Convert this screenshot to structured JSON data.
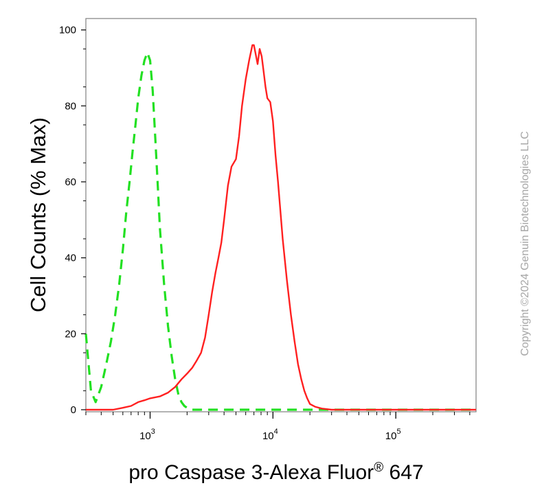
{
  "chart_data": {
    "type": "line",
    "xlabel_main": "pro Caspase 3-Alexa Fluor",
    "xlabel_reg": "®",
    "xlabel_tail": " 647",
    "ylabel": "Cell Counts (% Max)",
    "x_scale": "log",
    "xlim": [
      300,
      450000
    ],
    "ylim": [
      0,
      103
    ],
    "y_ticks": [
      0,
      20,
      40,
      60,
      80,
      100
    ],
    "x_major_ticks": [
      {
        "value": 1000,
        "base": "10",
        "exp": "3"
      },
      {
        "value": 10000,
        "base": "10",
        "exp": "4"
      },
      {
        "value": 100000,
        "base": "10",
        "exp": "5"
      }
    ],
    "grid": false,
    "watermark": "Copyright ©2024 Genuin Biotechnologies LLC",
    "series": [
      {
        "style": "dashed",
        "color": "#22e022",
        "x": [
          300,
          330,
          360,
          400,
          440,
          480,
          520,
          560,
          600,
          640,
          680,
          720,
          760,
          800,
          850,
          900,
          950,
          1000,
          1050,
          1100,
          1150,
          1200,
          1300,
          1400,
          1500,
          1600,
          1700,
          1800,
          1900,
          2000,
          2100,
          2200,
          3000,
          10000,
          50000,
          450000
        ],
        "y": [
          20,
          5,
          2,
          6,
          12,
          18,
          25,
          33,
          42,
          52,
          60,
          68,
          75,
          82,
          88,
          92,
          94,
          92,
          84,
          72,
          60,
          48,
          33,
          22,
          14,
          8,
          4,
          2,
          1,
          0.5,
          0.3,
          0,
          0,
          0,
          0,
          0
        ]
      },
      {
        "style": "solid",
        "color": "#ff2020",
        "x": [
          300,
          500,
          600,
          700,
          800,
          900,
          1000,
          1200,
          1400,
          1600,
          1800,
          2000,
          2200,
          2400,
          2600,
          2800,
          3000,
          3200,
          3400,
          3600,
          3800,
          4000,
          4300,
          4600,
          5000,
          5300,
          5600,
          6000,
          6400,
          6800,
          7000,
          7200,
          7500,
          7800,
          8100,
          8400,
          8700,
          9000,
          9500,
          10000,
          10500,
          11000,
          12000,
          13000,
          14000,
          15000,
          16000,
          17000,
          18000,
          19000,
          20000,
          22000,
          25000,
          30000,
          40000,
          60000,
          100000,
          450000
        ],
        "y": [
          0,
          0,
          0.5,
          1,
          2,
          2.5,
          3,
          3.5,
          4.5,
          6,
          8,
          9.5,
          11,
          13,
          15,
          19,
          25,
          31,
          36,
          40,
          44,
          50,
          59,
          64,
          66,
          72,
          80,
          87,
          92,
          96,
          96,
          94,
          91,
          95,
          93,
          89,
          85,
          82,
          81,
          76,
          67,
          60,
          45,
          34,
          25,
          18,
          12,
          8,
          5,
          3,
          1.5,
          0.8,
          0.3,
          0,
          0,
          0,
          0,
          0
        ]
      }
    ]
  }
}
